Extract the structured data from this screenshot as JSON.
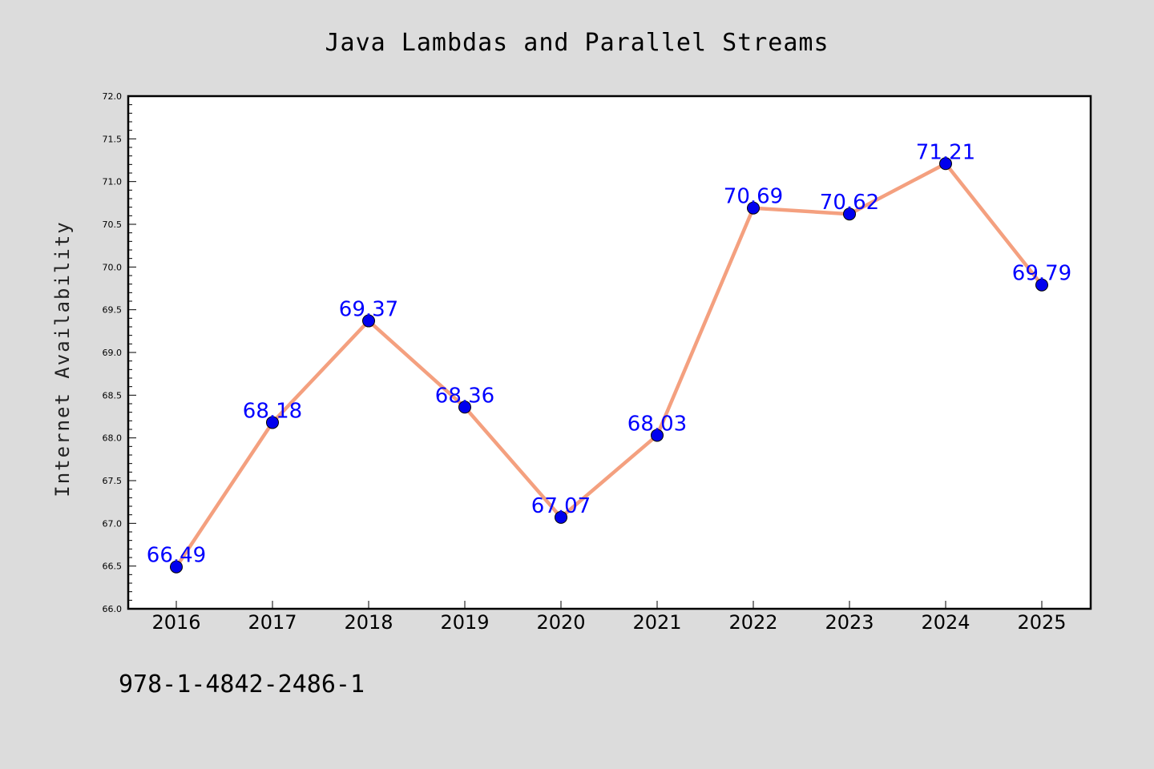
{
  "chart_data": {
    "type": "line",
    "title": "Java Lambdas and Parallel Streams",
    "ylabel": "Internet Availability",
    "xlabel": "",
    "categories": [
      "2016",
      "2017",
      "2018",
      "2019",
      "2020",
      "2021",
      "2022",
      "2023",
      "2024",
      "2025"
    ],
    "series": [
      {
        "values": [
          66.49,
          68.18,
          69.37,
          68.36,
          67.07,
          68.03,
          70.69,
          70.62,
          71.21,
          69.79
        ],
        "line_color": "#f4a07f",
        "marker_color": "#0000ee"
      }
    ],
    "data_labels": [
      "66.49",
      "68.18",
      "69.37",
      "68.36",
      "67.07",
      "68.03",
      "70.69",
      "70.62",
      "71.21",
      "69.79"
    ],
    "ylim": [
      66.0,
      72.0
    ],
    "yticks": [
      "66.0",
      "66.5",
      "67.0",
      "67.5",
      "68.0",
      "68.5",
      "69.0",
      "69.5",
      "70.0",
      "70.5",
      "71.0",
      "71.5",
      "72.0"
    ],
    "grid": false,
    "label_color": "#0000ff"
  },
  "footer": {
    "text": "978-1-4842-2486-1"
  }
}
